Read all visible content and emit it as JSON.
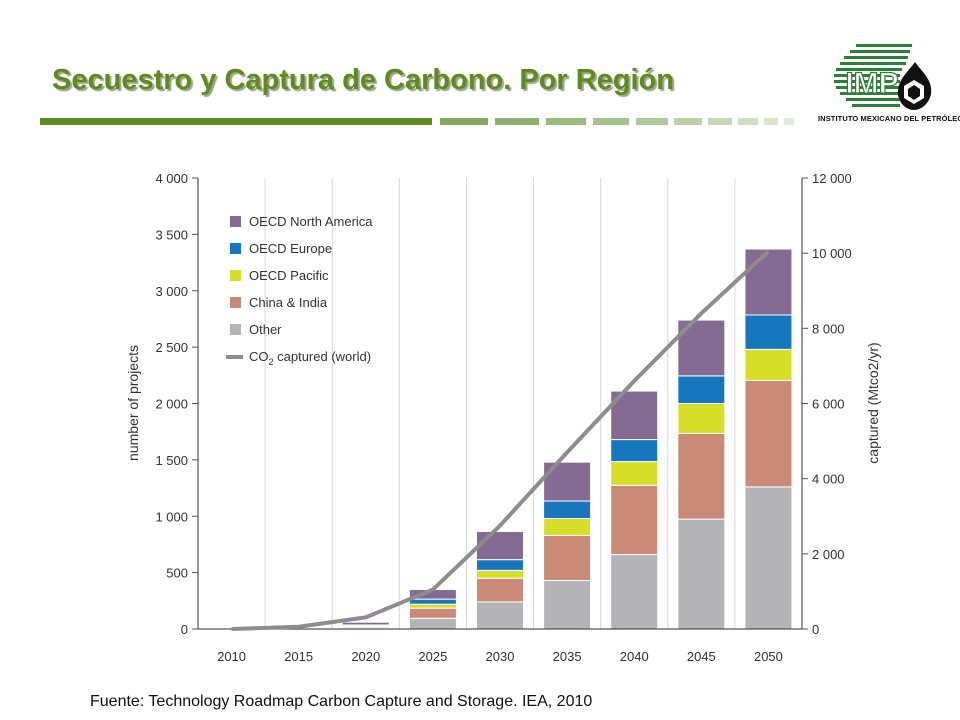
{
  "slide": {
    "title": "Secuestro y Captura de Carbono. Por Región",
    "source": "Fuente: Technology Roadmap Carbon Capture and Storage. IEA, 2010",
    "accent_color": "#5f8a1f"
  },
  "logo": {
    "mark": "IMP",
    "caption": "INSTITUTO MEXICANO DEL PETRÓLEO",
    "icon": "hexagon-drop-icon",
    "color": "#2f7d3a"
  },
  "chart_data": {
    "type": "bar",
    "stacked": true,
    "categories": [
      "2010",
      "2015",
      "2020",
      "2025",
      "2030",
      "2035",
      "2040",
      "2045",
      "2050"
    ],
    "ylabel": "number of projects",
    "y2label": "captured (Mtco2/yr)",
    "ylim": [
      0,
      4000
    ],
    "y2lim": [
      0,
      12000
    ],
    "yticks": [
      "0",
      "500",
      "1 000",
      "1 500",
      "2 000",
      "2 500",
      "3 000",
      "3 500",
      "4 000"
    ],
    "y2ticks": [
      "0",
      "2 000",
      "4 000",
      "6 000",
      "8 000",
      "10 000",
      "12 000"
    ],
    "grid": true,
    "legend_position": "top-left",
    "series": [
      {
        "name": "Other",
        "color": "#b3b4b7",
        "values": [
          0,
          3,
          8,
          95,
          240,
          430,
          660,
          975,
          1260
        ]
      },
      {
        "name": "China & India",
        "color": "#c98a77",
        "values": [
          0,
          3,
          12,
          90,
          210,
          400,
          615,
          760,
          945
        ]
      },
      {
        "name": "OECD Pacific",
        "color": "#d7de29",
        "values": [
          0,
          2,
          6,
          35,
          70,
          150,
          210,
          265,
          275
        ]
      },
      {
        "name": "OECD Europe",
        "color": "#1677bd",
        "values": [
          0,
          3,
          10,
          45,
          95,
          155,
          195,
          245,
          305
        ]
      },
      {
        "name": "OECD North America",
        "color": "#856a94",
        "values": [
          0,
          5,
          24,
          85,
          250,
          345,
          430,
          495,
          585
        ]
      }
    ],
    "line": {
      "name": "CO2 captured (world)",
      "label_main": "CO",
      "label_sub": "2",
      "label_rest": "captured (world)",
      "color": "#8d8d8d",
      "values": [
        0,
        60,
        310,
        1050,
        2750,
        4700,
        6600,
        8400,
        10050
      ]
    }
  }
}
